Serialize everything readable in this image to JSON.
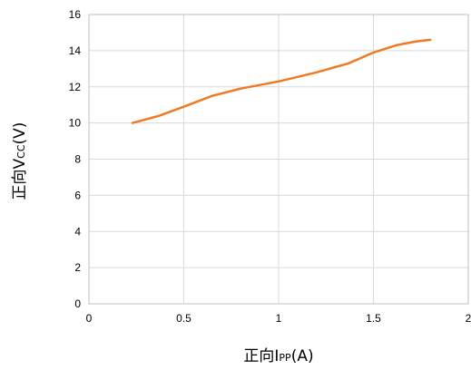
{
  "chart_data": {
    "type": "line",
    "title": "",
    "xlabel": {
      "prefix": "正向I",
      "sub": "PP",
      "suffix": "(A)"
    },
    "ylabel": {
      "prefix": "正向V",
      "sub": "CC",
      "suffix": "(V)"
    },
    "xlim": [
      0,
      2
    ],
    "ylim": [
      0,
      16
    ],
    "xticks": [
      0,
      0.5,
      1,
      1.5,
      2
    ],
    "xtick_labels": [
      "0",
      "0.5",
      "1",
      "1.5",
      "2"
    ],
    "yticks": [
      0,
      2,
      4,
      6,
      8,
      10,
      12,
      14,
      16
    ],
    "ytick_labels": [
      "0",
      "2",
      "4",
      "6",
      "8",
      "10",
      "12",
      "14",
      "16"
    ],
    "grid": true,
    "legend": "none",
    "series": [
      {
        "color": "#f07a21",
        "x": [
          0.23,
          0.37,
          0.5,
          0.65,
          0.8,
          1.0,
          1.2,
          1.37,
          1.5,
          1.62,
          1.72,
          1.8
        ],
        "y": [
          10.0,
          10.4,
          10.9,
          11.5,
          11.9,
          12.3,
          12.8,
          13.3,
          13.9,
          14.3,
          14.5,
          14.6
        ]
      }
    ]
  }
}
